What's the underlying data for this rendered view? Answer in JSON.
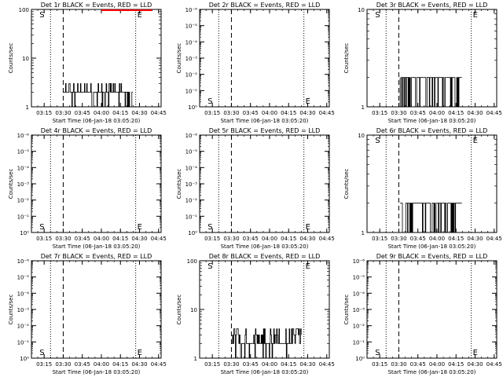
{
  "figure": {
    "xlabel": "Start Time (06-Jan-18 03:05:20)",
    "ylabel": "Counts/sec",
    "xticks": [
      "03:15",
      "03:30",
      "03:45",
      "04:00",
      "04:15",
      "04:30",
      "04:45"
    ],
    "start_marker": "S",
    "end_marker": "E",
    "colors": {
      "events": "#000000",
      "lld": "#ff0000",
      "axes": "#000000"
    }
  },
  "chart_data": [
    {
      "id": "det-1r",
      "type": "line",
      "title": "Det 1r BLACK = Events, RED = LLD",
      "scale": "log",
      "yticks": [
        "1",
        "10",
        "100"
      ],
      "ylim_decades": [
        0,
        2
      ],
      "start_time": "03:20",
      "end_time": "04:40",
      "dashed_time": "03:30",
      "dotted_times": [
        "03:20",
        "04:27"
      ],
      "events": {
        "from": "03:30",
        "to": "04:25",
        "levels": [
          3,
          2,
          1
        ],
        "base": 2
      },
      "lld": {
        "from": "04:00",
        "to": "04:40",
        "value": 100
      }
    },
    {
      "id": "det-2r",
      "type": "line",
      "title": "Det 2r BLACK = Events, RED = LLD",
      "scale": "log",
      "yticks": [
        "10⁰",
        "10⁻¹",
        "10⁻²",
        "10⁻³",
        "10⁻⁴",
        "10⁻⁵",
        "10⁻⁶"
      ],
      "ylim_decades": [
        0,
        6
      ],
      "start_time": "03:20",
      "end_time": "04:40",
      "dashed_time": "03:30",
      "dotted_times": [
        "03:20",
        "04:27"
      ],
      "events": null,
      "lld": null
    },
    {
      "id": "det-3r",
      "type": "line",
      "title": "Det 3r BLACK = Events, RED = LLD",
      "scale": "log",
      "yticks": [
        "1",
        "10"
      ],
      "ylim_decades": [
        0,
        1
      ],
      "start_time": "03:20",
      "end_time": "04:40",
      "dashed_time": "03:30",
      "dotted_times": [
        "03:20",
        "04:27"
      ],
      "events": {
        "from": "03:31",
        "to": "04:20",
        "levels": [
          2,
          1
        ],
        "base": 2
      },
      "lld": null
    },
    {
      "id": "det-4r",
      "type": "line",
      "title": "Det 4r BLACK = Events, RED = LLD",
      "scale": "log",
      "yticks": [
        "10⁰",
        "10⁻¹",
        "10⁻²",
        "10⁻³",
        "10⁻⁴",
        "10⁻⁵",
        "10⁻⁶"
      ],
      "ylim_decades": [
        0,
        6
      ],
      "start_time": "03:20",
      "end_time": "04:40",
      "dashed_time": "03:30",
      "dotted_times": [
        "03:20",
        "04:27"
      ],
      "events": null,
      "lld": null
    },
    {
      "id": "det-5r",
      "type": "line",
      "title": "Det 5r BLACK = Events, RED = LLD",
      "scale": "log",
      "yticks": [
        "10⁰",
        "10⁻¹",
        "10⁻²",
        "10⁻³",
        "10⁻⁴",
        "10⁻⁵",
        "10⁻⁶"
      ],
      "ylim_decades": [
        0,
        6
      ],
      "start_time": "03:20",
      "end_time": "04:40",
      "dashed_time": "03:30",
      "dotted_times": [
        "03:20",
        "04:27"
      ],
      "events": null,
      "lld": null
    },
    {
      "id": "det-6r",
      "type": "line",
      "title": "Det 6r BLACK = Events, RED = LLD",
      "scale": "log",
      "yticks": [
        "1",
        "10"
      ],
      "ylim_decades": [
        0,
        1
      ],
      "start_time": "03:20",
      "end_time": "04:40",
      "dashed_time": "03:30",
      "dotted_times": [
        "03:20",
        "04:27"
      ],
      "events": {
        "from": "03:31",
        "to": "04:20",
        "levels": [
          2,
          1
        ],
        "base": 2
      },
      "lld": null
    },
    {
      "id": "det-7r",
      "type": "line",
      "title": "Det 7r BLACK = Events, RED = LLD",
      "scale": "log",
      "yticks": [
        "10⁰",
        "10⁻¹",
        "10⁻²",
        "10⁻³",
        "10⁻⁴",
        "10⁻⁵",
        "10⁻⁶"
      ],
      "ylim_decades": [
        0,
        6
      ],
      "start_time": "03:20",
      "end_time": "04:40",
      "dashed_time": "03:30",
      "dotted_times": [
        "03:20",
        "04:27"
      ],
      "events": null,
      "lld": null
    },
    {
      "id": "det-8r",
      "type": "line",
      "title": "Det 8r BLACK = Events, RED = LLD",
      "scale": "log",
      "yticks": [
        "1",
        "10",
        "100"
      ],
      "ylim_decades": [
        0,
        2
      ],
      "start_time": "03:20",
      "end_time": "04:40",
      "dashed_time": "03:30",
      "dotted_times": [
        "03:20",
        "04:27"
      ],
      "events": {
        "from": "03:30",
        "to": "04:25",
        "levels": [
          4,
          3,
          2,
          1
        ],
        "base": 2
      },
      "lld": null
    },
    {
      "id": "det-9r",
      "type": "line",
      "title": "Det 9r BLACK = Events, RED = LLD",
      "scale": "log",
      "yticks": [
        "10⁰",
        "10⁻¹",
        "10⁻²",
        "10⁻³",
        "10⁻⁴",
        "10⁻⁵",
        "10⁻⁶"
      ],
      "ylim_decades": [
        0,
        6
      ],
      "start_time": "03:20",
      "end_time": "04:40",
      "dashed_time": "03:30",
      "dotted_times": [
        "03:20",
        "04:27"
      ],
      "events": null,
      "lld": null
    }
  ]
}
